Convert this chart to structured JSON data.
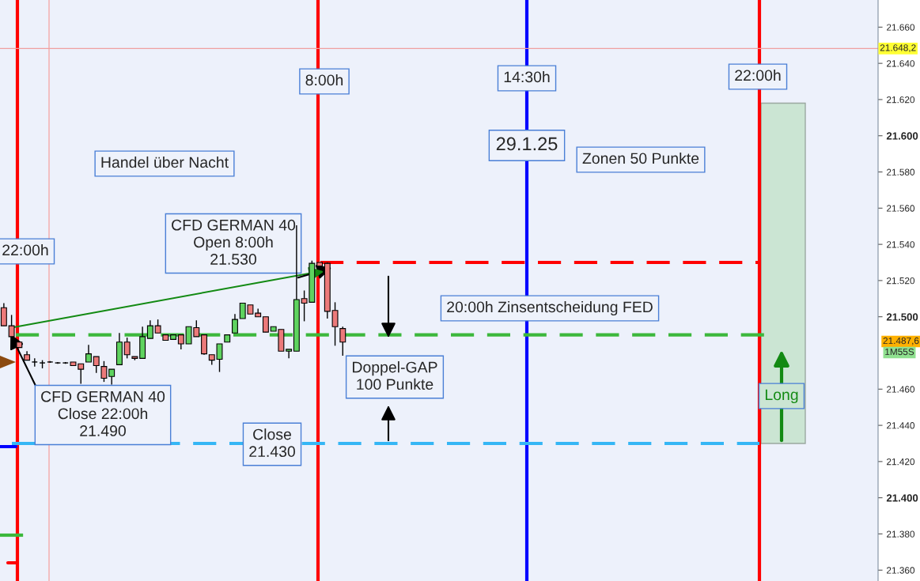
{
  "chart_data": {
    "type": "candlestick",
    "categories": [
      null,
      null,
      null,
      null,
      null,
      null,
      null,
      null,
      null,
      null,
      null,
      null,
      null,
      null,
      null,
      null,
      null,
      null,
      null,
      null,
      null,
      null,
      null,
      null,
      null,
      null,
      null,
      null,
      null,
      null,
      null,
      null,
      null,
      null,
      null,
      null,
      null,
      null,
      null,
      null,
      null,
      null,
      null,
      null,
      null,
      null,
      null,
      null,
      null,
      null,
      null,
      null,
      null,
      null,
      null,
      null,
      null,
      null,
      null,
      null,
      null,
      null,
      null,
      null,
      null,
      null,
      null,
      null,
      null,
      null,
      null,
      null,
      null,
      null,
      null,
      null,
      null,
      null,
      null,
      null,
      null,
      null,
      null,
      null,
      null,
      null,
      null,
      null,
      null,
      null,
      null,
      null,
      null,
      null,
      null,
      null,
      null,
      null,
      null,
      null,
      null,
      null,
      null,
      null,
      null,
      null,
      null,
      null,
      null,
      null,
      null,
      null,
      null,
      null
    ],
    "ohlc": [
      [
        21505,
        21507.5,
        21495,
        21495
      ],
      [
        21495,
        21501,
        21489,
        21489
      ],
      [
        21486,
        21486,
        21483,
        21483
      ],
      [
        21479,
        21481,
        21476,
        21476
      ],
      [
        21475,
        21477,
        21472.5,
        21475
      ],
      [
        21474.5,
        21476,
        21471.5,
        21474.5
      ],
      [
        21475,
        21475.5,
        21474.5,
        21475
      ],
      [
        21474.5,
        21475,
        21474,
        21474.5
      ],
      [
        21474.5,
        21475,
        21474,
        21474.5
      ],
      [
        21475,
        21475,
        21473,
        21473
      ],
      [
        21474,
        21474,
        21463,
        21471
      ],
      [
        21475,
        21484.5,
        21475,
        21479.5
      ],
      [
        21478,
        21478,
        21469,
        21473
      ],
      [
        21472.5,
        21475.5,
        21464,
        21466
      ],
      [
        21467,
        21471,
        21462.5,
        21471
      ],
      [
        21473.5,
        21491,
        21473.5,
        21486
      ],
      [
        21486,
        21488.5,
        21477,
        21479
      ],
      [
        21478,
        21478,
        21476,
        21477
      ],
      [
        21477,
        21494.5,
        21477,
        21489
      ],
      [
        21488,
        21498,
        21488,
        21495
      ],
      [
        21495,
        21498.5,
        21491,
        21491
      ],
      [
        21490,
        21490,
        21487,
        21487
      ],
      [
        21487.5,
        21490,
        21487.5,
        21490
      ],
      [
        21490,
        21490,
        21482,
        21485
      ],
      [
        21485,
        21494.5,
        21485,
        21494.5
      ],
      [
        21494,
        21498,
        21489,
        21489
      ],
      [
        21490,
        21490,
        21479,
        21479.5
      ],
      [
        21479,
        21479,
        21473.5,
        21476
      ],
      [
        21476.5,
        21485,
        21469.5,
        21485
      ],
      [
        21486,
        21490,
        21486,
        21490
      ],
      [
        21491,
        21501.5,
        21491,
        21498.5
      ],
      [
        21499,
        21507.5,
        21499,
        21507.5
      ],
      [
        21506.5,
        21506.5,
        21501.5,
        21501.5
      ],
      [
        21502,
        21504.5,
        21500,
        21500
      ],
      [
        21500,
        21500,
        21491.5,
        21491.5
      ],
      [
        21492,
        21494.5,
        21492,
        21494.5
      ],
      [
        21493,
        21493,
        21481,
        21481
      ],
      [
        21481,
        21482,
        21477,
        21482
      ],
      [
        21481,
        21550.5,
        21481,
        21509.5
      ],
      [
        21510,
        21514.5,
        21497.5,
        21507.5
      ],
      [
        21508,
        21531,
        21508,
        21529.5
      ],
      [
        21530,
        21530,
        21528,
        21528
      ],
      [
        21529.5,
        21530,
        21499,
        21503
      ],
      [
        21503.5,
        21508,
        21484,
        21494.5
      ],
      [
        21493.5,
        21494.5,
        21478.5,
        21486
      ],
      null,
      null,
      null,
      null,
      null,
      null,
      null,
      null,
      null,
      null,
      null,
      null,
      null,
      null,
      null,
      null,
      null,
      null,
      null,
      null,
      null,
      null,
      null,
      null,
      null,
      null,
      null,
      null,
      null,
      null,
      null,
      null,
      null,
      null,
      null,
      null,
      null,
      null,
      null,
      null,
      null,
      null,
      null,
      null,
      null,
      null,
      null,
      null,
      null,
      null,
      null,
      null,
      null,
      null,
      null,
      null,
      null,
      null,
      null,
      null,
      null,
      null,
      null,
      null,
      null,
      null,
      null,
      null,
      null
    ],
    "series": [
      {
        "type": "line",
        "values": [
          null,
          21494,
          null,
          null,
          null,
          null,
          null,
          null,
          null,
          null,
          null,
          null,
          null,
          null,
          null,
          null,
          null,
          null,
          null,
          null,
          null,
          null,
          null,
          null,
          null,
          null,
          null,
          null,
          null,
          null,
          null,
          null,
          null,
          null,
          null,
          null,
          null,
          null,
          null,
          null,
          null,
          21525,
          null,
          null,
          null,
          null,
          null,
          null,
          null,
          null,
          null,
          null,
          null,
          null,
          null,
          null,
          null,
          null,
          null,
          null,
          null,
          null,
          null,
          null,
          null,
          null,
          null,
          null,
          null,
          null,
          null,
          null,
          null,
          null,
          null,
          null,
          null,
          null,
          null,
          null,
          null,
          null,
          null,
          null,
          null,
          null,
          null,
          null,
          null,
          null,
          null,
          null,
          null,
          null,
          null,
          null,
          null,
          null,
          null,
          null,
          null,
          null,
          null,
          null,
          null,
          null,
          null,
          null,
          null,
          null,
          null,
          null,
          null,
          null
        ],
        "color": "#138a13"
      }
    ],
    "ylim": [
      21354,
      21675
    ],
    "yticks": [
      {
        "value": 21360,
        "label": "21.360"
      },
      {
        "value": 21380,
        "label": "21.380"
      },
      {
        "value": 21400,
        "label": "21.400"
      },
      {
        "value": 21420,
        "label": "21.420"
      },
      {
        "value": 21440,
        "label": "21.440"
      },
      {
        "value": 21460,
        "label": "21.460"
      },
      {
        "value": 21500,
        "label": "21.500"
      },
      {
        "value": 21520,
        "label": "21.520"
      },
      {
        "value": 21540,
        "label": "21.540"
      },
      {
        "value": 21560,
        "label": "21.560"
      },
      {
        "value": 21580,
        "label": "21.580"
      },
      {
        "value": 21600,
        "label": "21.600"
      },
      {
        "value": 21620,
        "label": "21.620"
      },
      {
        "value": 21640,
        "label": "21.640"
      },
      {
        "value": 21660,
        "label": "21.660"
      }
    ],
    "tick_labels": "y",
    "ref_lines": [
      {
        "axis": "y",
        "value": 21530,
        "label": null,
        "color": "#ff0000",
        "line_style": "dashed"
      },
      {
        "axis": "y",
        "value": 21490,
        "label": null,
        "color": "#3cb83c",
        "line_style": "dashed"
      },
      {
        "axis": "y",
        "value": 21430,
        "label": null,
        "color": "#35b6f5",
        "line_style": "dashed"
      },
      {
        "axis": "y",
        "value": 21648.2,
        "label": "21.648,2",
        "color": "#f0a0a0",
        "line_style": "solid"
      }
    ],
    "bands": [
      {
        "axis": "y",
        "from": 21430,
        "to": 21618,
        "label": "Long",
        "color": "#cbe5d3"
      }
    ],
    "annotations": [
      "22:00h",
      "8:00h",
      "14:30h",
      "22:00h",
      "Handel über Nacht",
      "CFD GERMAN 40\nOpen 8:00h\n21.530",
      "29.1.25",
      "Zonen 50 Punkte",
      "20:00h Zinsentscheidung FED",
      "Doppel-GAP\n100 Punkte",
      "CFD GERMAN 40\nClose 22:00h\n21.490",
      "Close\n21.430",
      "21.487,6",
      "1M55S"
    ]
  }
}
